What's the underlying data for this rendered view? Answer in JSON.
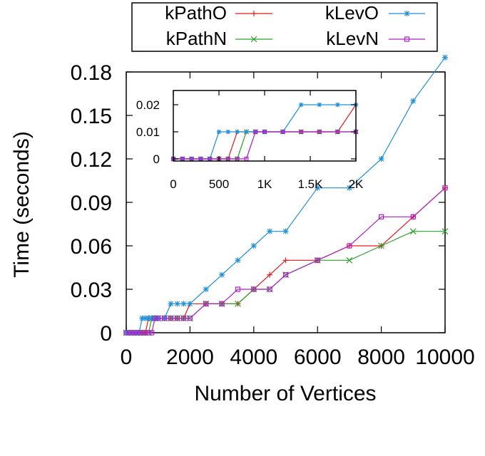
{
  "chart_data": {
    "type": "line",
    "xlabel": "Number of Vertices",
    "ylabel": "Time (seconds)",
    "xlim": [
      0,
      10000
    ],
    "ylim": [
      0,
      0.18
    ],
    "xticks": [
      0,
      2000,
      4000,
      6000,
      8000,
      10000
    ],
    "xtick_labels": [
      "0",
      "2000",
      "4000",
      "6000",
      "8000",
      "10000"
    ],
    "yticks": [
      0,
      0.03,
      0.06,
      0.09,
      0.12,
      0.15,
      0.18
    ],
    "ytick_labels": [
      "0",
      "0.03",
      "0.06",
      "0.09",
      "0.12",
      "0.15",
      "0.18"
    ],
    "grid": false,
    "legend_position": "top-outside",
    "legend_columns": 2,
    "series": [
      {
        "name": "kPathO",
        "color": "#e41a1c",
        "marker": "plus",
        "x": [
          0,
          100,
          200,
          300,
          400,
          500,
          600,
          700,
          800,
          900,
          1000,
          1200,
          1400,
          1600,
          1800,
          2000,
          2500,
          3000,
          3500,
          4000,
          4500,
          5000,
          6000,
          7000,
          8000,
          9000,
          10000
        ],
        "y": [
          0,
          0,
          0,
          0,
          0,
          0,
          0,
          0.01,
          0.01,
          0.01,
          0.01,
          0.01,
          0.01,
          0.01,
          0.01,
          0.02,
          0.02,
          0.02,
          0.02,
          0.03,
          0.04,
          0.05,
          0.05,
          0.06,
          0.06,
          0.08,
          0.1
        ]
      },
      {
        "name": "kPathN",
        "color": "#2ca02c",
        "marker": "cross",
        "x": [
          0,
          100,
          200,
          300,
          400,
          500,
          600,
          700,
          800,
          900,
          1000,
          1200,
          1400,
          1600,
          1800,
          2000,
          2500,
          3000,
          3500,
          4000,
          4500,
          5000,
          6000,
          7000,
          8000,
          9000,
          10000
        ],
        "y": [
          0,
          0,
          0,
          0,
          0,
          0,
          0,
          0,
          0.01,
          0.01,
          0.01,
          0.01,
          0.01,
          0.01,
          0.01,
          0.01,
          0.02,
          0.02,
          0.02,
          0.03,
          0.03,
          0.04,
          0.05,
          0.05,
          0.06,
          0.07,
          0.07
        ]
      },
      {
        "name": "kLevO",
        "color": "#1f8fd8",
        "marker": "star",
        "x": [
          0,
          100,
          200,
          300,
          400,
          500,
          600,
          700,
          800,
          900,
          1000,
          1200,
          1400,
          1600,
          1800,
          2000,
          2500,
          3000,
          3500,
          4000,
          4500,
          5000,
          6000,
          7000,
          8000,
          9000,
          10000
        ],
        "y": [
          0,
          0,
          0,
          0,
          0,
          0.01,
          0.01,
          0.01,
          0.01,
          0.01,
          0.01,
          0.01,
          0.02,
          0.02,
          0.02,
          0.02,
          0.03,
          0.04,
          0.05,
          0.06,
          0.07,
          0.07,
          0.1,
          0.1,
          0.12,
          0.16,
          0.19
        ]
      },
      {
        "name": "kLevN",
        "color": "#b01ec8",
        "marker": "square",
        "x": [
          0,
          100,
          200,
          300,
          400,
          500,
          600,
          700,
          800,
          900,
          1000,
          1200,
          1400,
          1600,
          1800,
          2000,
          2500,
          3000,
          3500,
          4000,
          4500,
          5000,
          6000,
          7000,
          8000,
          9000,
          10000
        ],
        "y": [
          0,
          0,
          0,
          0,
          0,
          0,
          0,
          0,
          0,
          0.01,
          0.01,
          0.01,
          0.01,
          0.01,
          0.01,
          0.01,
          0.02,
          0.02,
          0.03,
          0.03,
          0.03,
          0.04,
          0.05,
          0.06,
          0.08,
          0.08,
          0.1
        ]
      }
    ],
    "inset": {
      "xlim": [
        0,
        2000
      ],
      "ylim": [
        0,
        0.02
      ],
      "xticks": [
        0,
        500,
        1000,
        1500,
        2000
      ],
      "xtick_labels": [
        "0",
        "500",
        "1K",
        "1.5K",
        "2K"
      ],
      "yticks": [
        0,
        0.01,
        0.02
      ],
      "ytick_labels": [
        "0",
        "0.01",
        "0.02"
      ]
    }
  }
}
